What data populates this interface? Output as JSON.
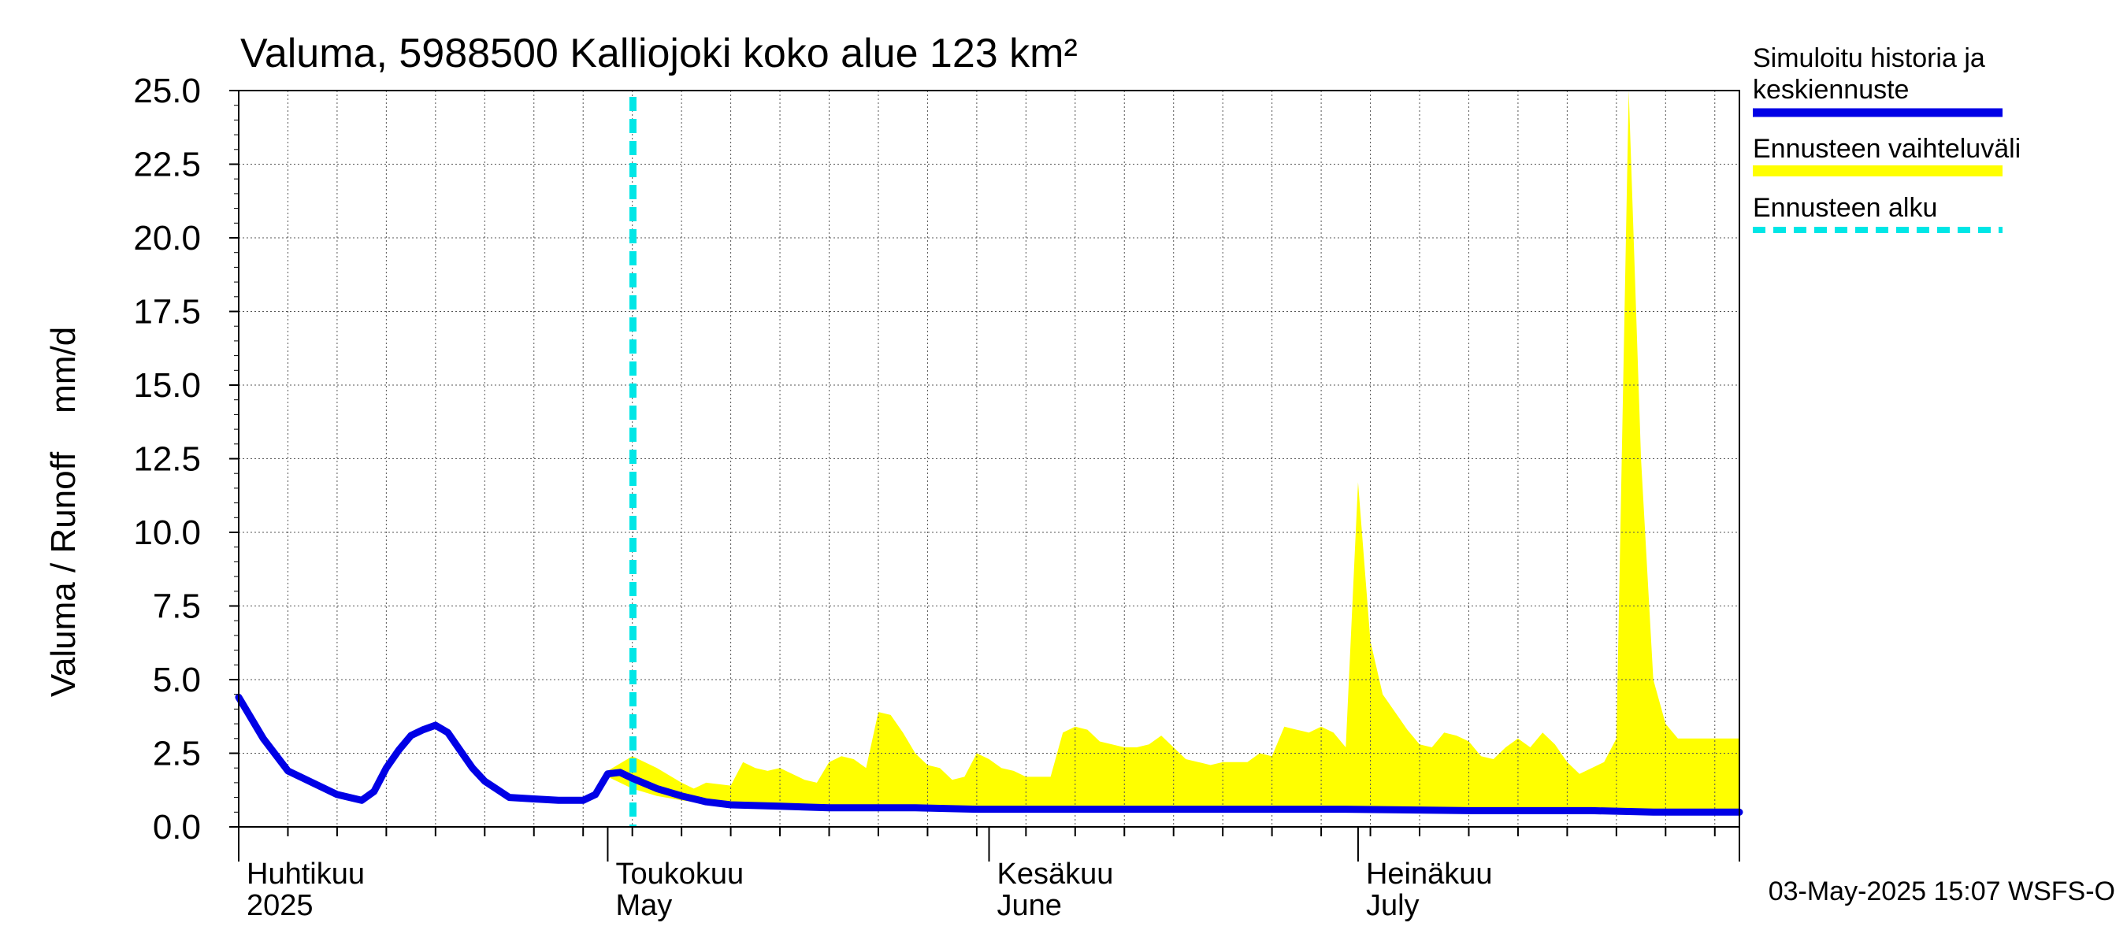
{
  "chart_data": {
    "type": "area",
    "title": "Valuma, 5988500 Kalliojoki koko alue 123 km²",
    "ylabel": "Valuma / Runoff    mm/d",
    "ylim": [
      0,
      25
    ],
    "yticks": [
      "0.0",
      "2.5",
      "5.0",
      "7.5",
      "10.0",
      "12.5",
      "15.0",
      "17.5",
      "20.0",
      "22.5",
      "25.0"
    ],
    "x_domain_days": [
      0,
      122
    ],
    "month_labels": [
      {
        "day": 0,
        "fi": "Huhtikuu",
        "en": "2025"
      },
      {
        "day": 30,
        "fi": "Toukokuu",
        "en": "May"
      },
      {
        "day": 61,
        "fi": "Kesäkuu",
        "en": "June"
      },
      {
        "day": 91,
        "fi": "Heinäkuu",
        "en": "July"
      }
    ],
    "forecast_start_day": 30,
    "legend": {
      "history_line1": "Simuloitu historia ja",
      "history_line2": "keskiennuste",
      "range": "Ennusteen vaihteluväli",
      "start": "Ennusteen alku"
    },
    "colors": {
      "history": "#0000e6",
      "range": "#ffff00",
      "start": "#00e6e6"
    },
    "timestamp": "03-May-2025 15:07 WSFS-O",
    "series": [
      {
        "name": "Simuloitu historia ja keskiennuste",
        "x": [
          0,
          2,
          4,
          5,
          7,
          8,
          10,
          11,
          12,
          13,
          14,
          15,
          16,
          17,
          18,
          19,
          20,
          22,
          24,
          26,
          28,
          29,
          30,
          31,
          32,
          34,
          36,
          38,
          40,
          44,
          48,
          55,
          60,
          70,
          80,
          90,
          100,
          110,
          115,
          122
        ],
        "values": [
          4.4,
          3.0,
          1.9,
          1.7,
          1.3,
          1.1,
          0.9,
          1.2,
          2.0,
          2.6,
          3.1,
          3.3,
          3.45,
          3.2,
          2.6,
          2.0,
          1.55,
          1.0,
          0.95,
          0.9,
          0.9,
          1.1,
          1.8,
          1.85,
          1.65,
          1.3,
          1.05,
          0.85,
          0.75,
          0.7,
          0.65,
          0.65,
          0.6,
          0.6,
          0.6,
          0.6,
          0.55,
          0.55,
          0.5,
          0.5
        ]
      },
      {
        "name": "Ennusteen vaihteluväli (upper)",
        "x": [
          30,
          32,
          34,
          36,
          37,
          38,
          40,
          41,
          42,
          43,
          44,
          45,
          46,
          47,
          48,
          49,
          50,
          51,
          52,
          53,
          54,
          55,
          56,
          57,
          58,
          59,
          60,
          61,
          62,
          63,
          64,
          65,
          66,
          67,
          68,
          69,
          70,
          71,
          72,
          73,
          74,
          75,
          76,
          77,
          78,
          79,
          80,
          81,
          82,
          83,
          84,
          85,
          86,
          87,
          88,
          89,
          90,
          91,
          92,
          93,
          94,
          95,
          96,
          97,
          98,
          99,
          100,
          101,
          102,
          103,
          104,
          105,
          106,
          107,
          108,
          109,
          110,
          111,
          112,
          113,
          114,
          115,
          116,
          117,
          118,
          119,
          120,
          121,
          122
        ],
        "values": [
          1.9,
          2.4,
          2.0,
          1.5,
          1.3,
          1.5,
          1.4,
          2.2,
          2.0,
          1.9,
          2.0,
          1.8,
          1.6,
          1.5,
          2.2,
          2.4,
          2.3,
          2.0,
          3.9,
          3.8,
          3.2,
          2.5,
          2.1,
          2.0,
          1.6,
          1.7,
          2.5,
          2.3,
          2.0,
          1.9,
          1.7,
          1.7,
          1.7,
          3.2,
          3.4,
          3.3,
          2.9,
          2.8,
          2.7,
          2.7,
          2.8,
          3.1,
          2.7,
          2.3,
          2.2,
          2.1,
          2.2,
          2.2,
          2.2,
          2.5,
          2.4,
          3.4,
          3.3,
          3.2,
          3.4,
          3.2,
          2.7,
          11.7,
          6.3,
          4.5,
          3.9,
          3.3,
          2.8,
          2.7,
          3.2,
          3.1,
          2.9,
          2.4,
          2.3,
          2.7,
          3.0,
          2.7,
          3.2,
          2.8,
          2.2,
          1.8,
          2.0,
          2.2,
          3.0,
          25.0,
          12.5,
          5.0,
          3.5,
          3.0,
          3.0,
          3.0,
          3.0,
          3.0,
          3.0
        ]
      },
      {
        "name": "Ennusteen vaihteluväli (lower)",
        "x": [
          30,
          32,
          34,
          36,
          38,
          40,
          45,
          50,
          60,
          70,
          80,
          90,
          100,
          110,
          122
        ],
        "values": [
          1.7,
          1.3,
          1.05,
          0.9,
          0.78,
          0.7,
          0.65,
          0.6,
          0.58,
          0.57,
          0.55,
          0.55,
          0.5,
          0.48,
          0.45
        ]
      }
    ]
  }
}
